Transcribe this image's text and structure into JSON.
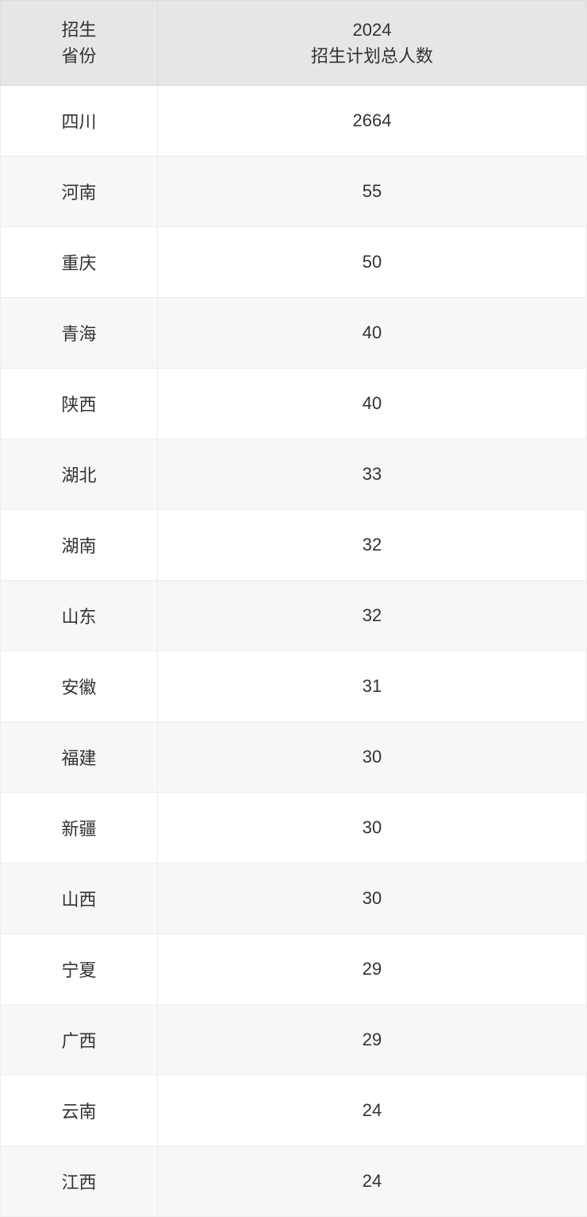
{
  "table": {
    "columns": [
      {
        "line1": "招生",
        "line2": "省份"
      },
      {
        "line1": "2024",
        "line2": "招生计划总人数"
      }
    ],
    "rows": [
      {
        "province": "四川",
        "count": "2664"
      },
      {
        "province": "河南",
        "count": "55"
      },
      {
        "province": "重庆",
        "count": "50"
      },
      {
        "province": "青海",
        "count": "40"
      },
      {
        "province": "陕西",
        "count": "40"
      },
      {
        "province": "湖北",
        "count": "33"
      },
      {
        "province": "湖南",
        "count": "32"
      },
      {
        "province": "山东",
        "count": "32"
      },
      {
        "province": "安徽",
        "count": "31"
      },
      {
        "province": "福建",
        "count": "30"
      },
      {
        "province": "新疆",
        "count": "30"
      },
      {
        "province": "山西",
        "count": "30"
      },
      {
        "province": "宁夏",
        "count": "29"
      },
      {
        "province": "广西",
        "count": "29"
      },
      {
        "province": "云南",
        "count": "24"
      },
      {
        "province": "江西",
        "count": "24"
      }
    ],
    "header_bg": "#e6e6e6",
    "row_odd_bg": "#ffffff",
    "row_even_bg": "#f7f7f7",
    "border_color": "#eeeeee",
    "text_color": "#333333",
    "font_size": 22
  }
}
